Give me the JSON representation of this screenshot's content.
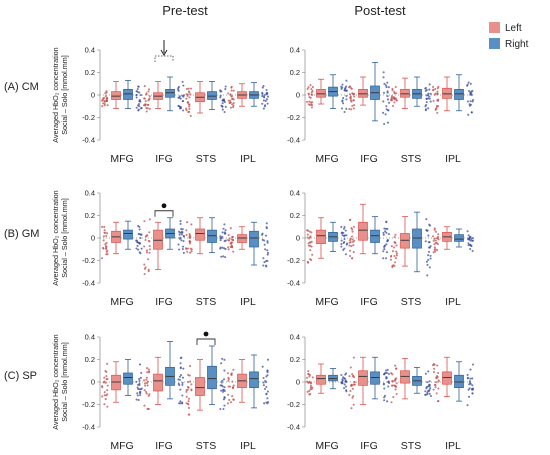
{
  "titles": {
    "pre": "Pre-test",
    "post": "Post-test"
  },
  "legend": [
    {
      "label": "Left",
      "color": "#e8908c"
    },
    {
      "label": "Right",
      "color": "#5a8fc4"
    }
  ],
  "rows": [
    "(A) CM",
    "(B) GM",
    "(C) SP"
  ],
  "ylabel_line1": "Averaged HbO₂ concentration",
  "ylabel_line2": "Social – Solo [mmol.mm]",
  "colors": {
    "left_box": "#e8908c",
    "right_box": "#5a8fc4",
    "whisker_left": "#d9534f",
    "whisker_right": "#2e5f96",
    "dots_left": "#c0504d",
    "dots_right": "#3b4fa0"
  },
  "chart_data": [
    {
      "type": "box",
      "panel": "A-pre",
      "row": "(A) CM",
      "title": "Pre-test",
      "ylim": [
        -0.4,
        0.4
      ],
      "yticks": [
        "0.4",
        "0.2",
        "0",
        "-0.2",
        "-0.4"
      ],
      "categories": [
        "MFG",
        "IFG",
        "STS",
        "IPL"
      ],
      "series": [
        {
          "name": "Left",
          "boxes": [
            [
              -0.12,
              -0.04,
              -0.01,
              0.03,
              0.12
            ],
            [
              -0.12,
              -0.04,
              -0.01,
              0.02,
              0.12
            ],
            [
              -0.16,
              -0.06,
              -0.02,
              0.02,
              0.12
            ],
            [
              -0.1,
              -0.03,
              0.0,
              0.03,
              0.1
            ]
          ]
        },
        {
          "name": "Right",
          "boxes": [
            [
              -0.12,
              -0.04,
              0.01,
              0.05,
              0.13
            ],
            [
              -0.14,
              -0.02,
              0.02,
              0.05,
              0.16
            ],
            [
              -0.13,
              -0.04,
              -0.01,
              0.03,
              0.12
            ],
            [
              -0.1,
              -0.03,
              0.0,
              0.03,
              0.11
            ]
          ]
        }
      ],
      "annotation": {
        "type": "arrow",
        "pair": 1
      }
    },
    {
      "type": "box",
      "panel": "A-post",
      "row": "(A) CM",
      "title": "Post-test",
      "ylim": [
        -0.4,
        0.4
      ],
      "yticks": [
        "0.4",
        "0.2",
        "0",
        "-0.2",
        "-0.4"
      ],
      "categories": [
        "MFG",
        "IFG",
        "STS",
        "IPL"
      ],
      "series": [
        {
          "name": "Left",
          "boxes": [
            [
              -0.08,
              -0.02,
              0.01,
              0.05,
              0.14
            ],
            [
              -0.09,
              -0.02,
              0.01,
              0.05,
              0.16
            ],
            [
              -0.12,
              -0.02,
              0.01,
              0.05,
              0.15
            ],
            [
              -0.14,
              -0.03,
              0.01,
              0.06,
              0.16
            ]
          ]
        },
        {
          "name": "Right",
          "boxes": [
            [
              -0.12,
              -0.01,
              0.03,
              0.07,
              0.18
            ],
            [
              -0.23,
              -0.04,
              0.02,
              0.08,
              0.29
            ],
            [
              -0.1,
              -0.03,
              0.01,
              0.05,
              0.16
            ],
            [
              -0.14,
              -0.04,
              0.01,
              0.05,
              0.18
            ]
          ]
        }
      ]
    },
    {
      "type": "box",
      "panel": "B-pre",
      "row": "(B) GM",
      "title": "",
      "ylim": [
        -0.4,
        0.4
      ],
      "yticks": [
        "0.4",
        "0.2",
        "0",
        "-0.2",
        "-0.4"
      ],
      "categories": [
        "MFG",
        "IFG",
        "STS",
        "IPL"
      ],
      "series": [
        {
          "name": "Left",
          "boxes": [
            [
              -0.14,
              -0.04,
              0.01,
              0.06,
              0.14
            ],
            [
              -0.28,
              -0.1,
              -0.02,
              0.07,
              0.14
            ],
            [
              -0.14,
              -0.02,
              0.04,
              0.08,
              0.18
            ],
            [
              -0.1,
              -0.04,
              0.0,
              0.03,
              0.1
            ]
          ]
        },
        {
          "name": "Right",
          "boxes": [
            [
              -0.1,
              -0.01,
              0.04,
              0.07,
              0.15
            ],
            [
              -0.1,
              0.0,
              0.04,
              0.08,
              0.18
            ],
            [
              -0.13,
              -0.04,
              0.02,
              0.07,
              0.18
            ],
            [
              -0.24,
              -0.08,
              0.0,
              0.06,
              0.14
            ]
          ]
        }
      ],
      "annotation": {
        "type": "star",
        "pair": 1
      }
    },
    {
      "type": "box",
      "panel": "B-post",
      "row": "(B) GM",
      "title": "",
      "ylim": [
        -0.4,
        0.4
      ],
      "yticks": [
        "0.4",
        "0.2",
        "0",
        "-0.2",
        "-0.4"
      ],
      "categories": [
        "MFG",
        "IFG",
        "STS",
        "IPL"
      ],
      "series": [
        {
          "name": "Left",
          "boxes": [
            [
              -0.18,
              -0.05,
              0.02,
              0.07,
              0.18
            ],
            [
              -0.14,
              -0.02,
              0.07,
              0.14,
              0.3
            ],
            [
              -0.25,
              -0.09,
              -0.02,
              0.04,
              0.19
            ],
            [
              -0.1,
              -0.03,
              0.01,
              0.05,
              0.1
            ]
          ]
        },
        {
          "name": "Right",
          "boxes": [
            [
              -0.12,
              -0.03,
              0.01,
              0.05,
              0.14
            ],
            [
              -0.14,
              -0.04,
              0.02,
              0.07,
              0.19
            ],
            [
              -0.3,
              -0.09,
              0.0,
              0.08,
              0.23
            ],
            [
              -0.08,
              -0.03,
              -0.01,
              0.03,
              0.08
            ]
          ]
        }
      ]
    },
    {
      "type": "box",
      "panel": "C-pre",
      "row": "(C) SP",
      "title": "",
      "ylim": [
        -0.4,
        0.4
      ],
      "yticks": [
        "0.4",
        "0.2",
        "0",
        "-0.2",
        "-0.4"
      ],
      "categories": [
        "MFG",
        "IFG",
        "STS",
        "IPL"
      ],
      "series": [
        {
          "name": "Left",
          "boxes": [
            [
              -0.18,
              -0.07,
              0.0,
              0.06,
              0.18
            ],
            [
              -0.2,
              -0.08,
              0.01,
              0.07,
              0.22
            ],
            [
              -0.25,
              -0.12,
              -0.05,
              0.04,
              0.2
            ],
            [
              -0.18,
              -0.05,
              0.01,
              0.07,
              0.2
            ]
          ]
        },
        {
          "name": "Right",
          "boxes": [
            [
              -0.12,
              -0.02,
              0.04,
              0.08,
              0.2
            ],
            [
              -0.15,
              -0.03,
              0.05,
              0.13,
              0.36
            ],
            [
              -0.2,
              -0.06,
              0.03,
              0.14,
              0.32
            ],
            [
              -0.23,
              -0.05,
              0.03,
              0.09,
              0.24
            ]
          ]
        }
      ],
      "annotation": {
        "type": "star",
        "pair": 2
      }
    },
    {
      "type": "box",
      "panel": "C-post",
      "row": "(C) SP",
      "title": "",
      "ylim": [
        -0.4,
        0.4
      ],
      "yticks": [
        "0.4",
        "0.2",
        "0",
        "-0.2",
        "-0.4"
      ],
      "categories": [
        "MFG",
        "IFG",
        "STS",
        "IPL"
      ],
      "series": [
        {
          "name": "Left",
          "boxes": [
            [
              -0.1,
              -0.02,
              0.03,
              0.06,
              0.16
            ],
            [
              -0.2,
              -0.03,
              0.05,
              0.1,
              0.22
            ],
            [
              -0.15,
              -0.01,
              0.05,
              0.1,
              0.21
            ],
            [
              -0.13,
              -0.02,
              0.04,
              0.09,
              0.22
            ]
          ]
        },
        {
          "name": "Right",
          "boxes": [
            [
              -0.06,
              0.01,
              0.03,
              0.06,
              0.12
            ],
            [
              -0.15,
              -0.02,
              0.04,
              0.09,
              0.22
            ],
            [
              -0.1,
              -0.03,
              0.01,
              0.05,
              0.13
            ],
            [
              -0.17,
              -0.05,
              0.0,
              0.06,
              0.18
            ]
          ]
        }
      ]
    }
  ]
}
